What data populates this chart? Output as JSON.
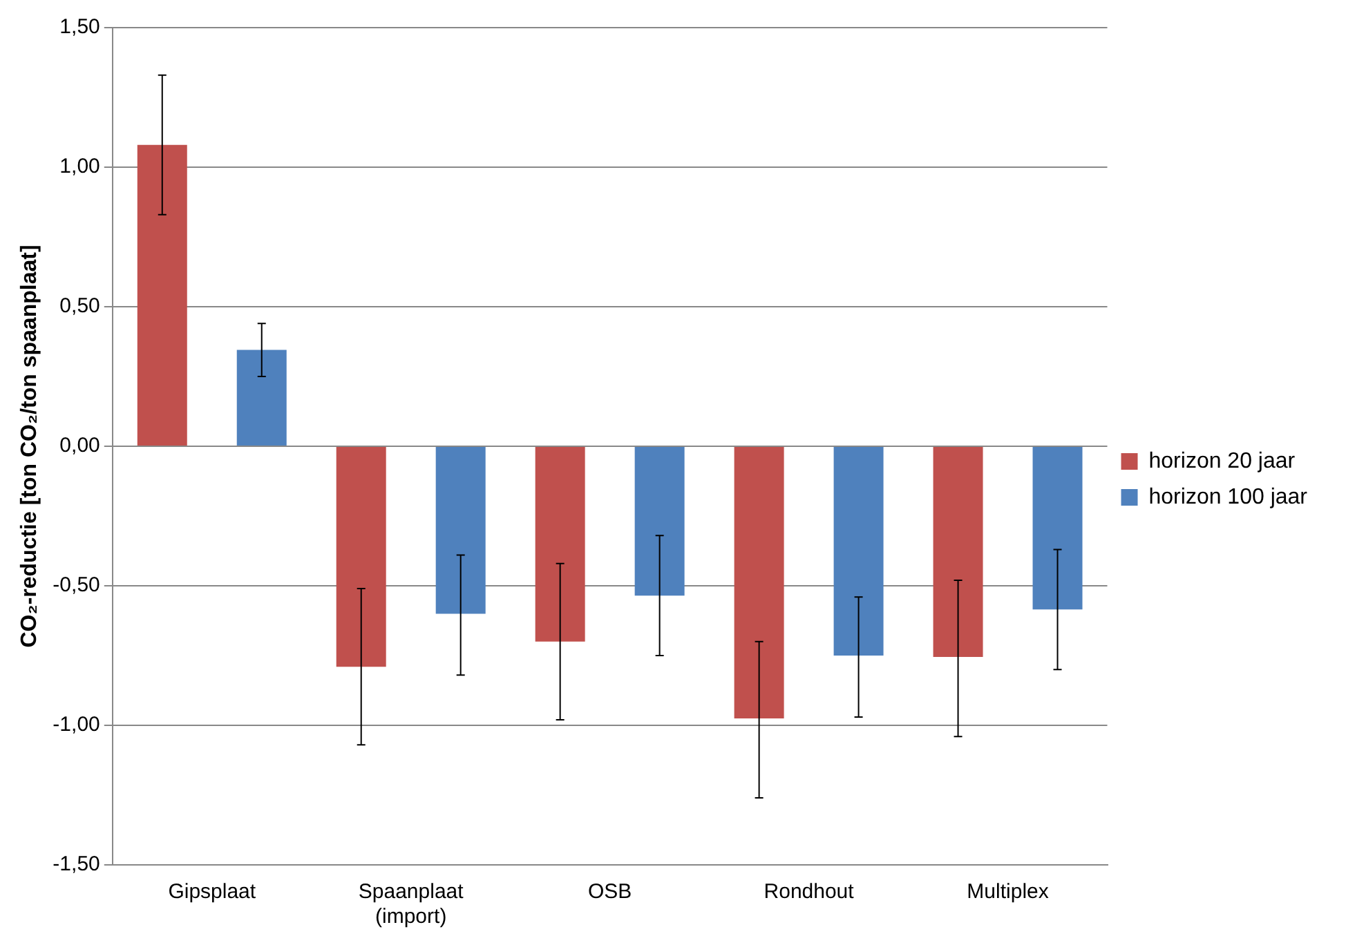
{
  "chart_data": {
    "type": "bar",
    "ylabel": "CO₂-reductie [ton CO₂/ton spaanplaat]",
    "categories": [
      "Gipsplaat",
      "Spaanplaat\n(import)",
      "OSB",
      "Rondhout",
      "Multiplex"
    ],
    "series": [
      {
        "name": "horizon 20 jaar",
        "color": "#c0504d",
        "values": [
          1.08,
          -0.79,
          -0.7,
          -0.975,
          -0.755
        ],
        "errors": [
          [
            0.83,
            1.33
          ],
          [
            -1.07,
            -0.51
          ],
          [
            -0.98,
            -0.42
          ],
          [
            -1.26,
            -0.7
          ],
          [
            -1.04,
            -0.48
          ]
        ]
      },
      {
        "name": "horizon 100 jaar",
        "color": "#4f81bd",
        "values": [
          0.345,
          -0.6,
          -0.535,
          -0.75,
          -0.585
        ],
        "errors": [
          [
            0.25,
            0.44
          ],
          [
            -0.82,
            -0.39
          ],
          [
            -0.75,
            -0.32
          ],
          [
            -0.97,
            -0.54
          ],
          [
            -0.8,
            -0.37
          ]
        ]
      }
    ],
    "ylim": [
      -1.5,
      1.5
    ],
    "yticks": [
      {
        "value": -1.5,
        "label": "-1,50"
      },
      {
        "value": -1,
        "label": "-1,00"
      },
      {
        "value": -0.5,
        "label": "-0,50"
      },
      {
        "value": 0,
        "label": "0,00"
      },
      {
        "value": 0.5,
        "label": "0,50"
      },
      {
        "value": 1,
        "label": "1,00"
      },
      {
        "value": 1.5,
        "label": "1,50"
      }
    ],
    "grid": "y",
    "legend": "right"
  }
}
